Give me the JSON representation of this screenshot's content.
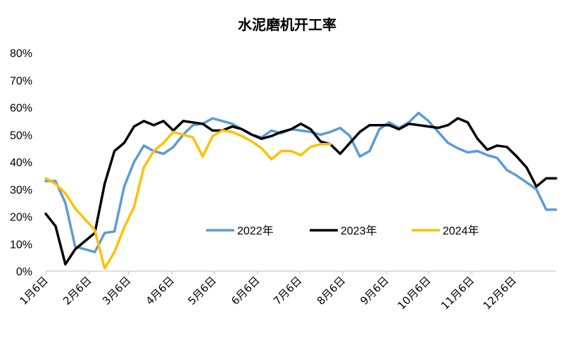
{
  "chart_data": {
    "type": "line",
    "title": "水泥磨机开工率",
    "xlabel": "",
    "ylabel": "",
    "ylim": [
      0,
      80
    ],
    "y_ticks": [
      "0%",
      "10%",
      "20%",
      "30%",
      "40%",
      "50%",
      "60%",
      "70%",
      "80%"
    ],
    "y_tick_values": [
      0,
      10,
      20,
      30,
      40,
      50,
      60,
      70,
      80
    ],
    "x_tick_labels": [
      "1月6日",
      "2月6日",
      "3月6日",
      "4月6日",
      "5月6日",
      "6月6日",
      "7月6日",
      "8月6日",
      "9月6日",
      "10月6日",
      "11月6日",
      "12月6日"
    ],
    "x_tick_weeks": [
      0,
      4.43,
      8.43,
      12.86,
      17.14,
      21.57,
      25.86,
      30.29,
      34.71,
      39,
      43.43,
      47.71
    ],
    "week_range": [
      0,
      52
    ],
    "grid": false,
    "legend_position": "bottom-center",
    "series": [
      {
        "name": "2022年",
        "color": "#5B9BD5",
        "x": [
          0,
          1,
          2,
          3,
          4,
          5,
          6,
          7,
          8,
          9,
          10,
          11,
          12,
          13,
          14,
          15,
          16,
          17,
          18,
          19,
          20,
          21,
          22,
          23,
          24,
          25,
          26,
          27,
          28,
          29,
          30,
          31,
          32,
          33,
          34,
          35,
          36,
          37,
          38,
          39,
          40,
          41,
          42,
          43,
          44,
          45,
          46,
          47,
          48,
          49,
          50,
          51,
          52
        ],
        "values": [
          33,
          33,
          25,
          9,
          8,
          7,
          14,
          14.5,
          31,
          40,
          46,
          44,
          43,
          45.5,
          50,
          53.5,
          54,
          56,
          55,
          54,
          52,
          50,
          49,
          51.5,
          50.5,
          52,
          51.5,
          51,
          50,
          51,
          52.5,
          49.5,
          42,
          44,
          52,
          54.5,
          52.5,
          54.5,
          58,
          55,
          51,
          47,
          45,
          43.5,
          44,
          42.5,
          41.5,
          37,
          35,
          32.5,
          30,
          22.5,
          22.5
        ]
      },
      {
        "name": "2023年",
        "color": "#000000",
        "x": [
          0,
          1,
          2,
          3,
          4,
          5,
          6,
          7,
          8,
          9,
          10,
          11,
          12,
          13,
          14,
          15,
          16,
          17,
          18,
          19,
          20,
          21,
          22,
          23,
          24,
          25,
          26,
          27,
          28,
          29,
          30,
          31,
          32,
          33,
          34,
          35,
          36,
          37,
          38,
          39,
          40,
          41,
          42,
          43,
          44,
          45,
          46,
          47,
          48,
          49,
          50,
          51,
          52
        ],
        "values": [
          21,
          16.5,
          2.5,
          8,
          11,
          14,
          32,
          44,
          47,
          53,
          55,
          53.5,
          55,
          51.5,
          55,
          54.5,
          54,
          51.5,
          51.5,
          53,
          52,
          50,
          48.5,
          49.5,
          51,
          52,
          54,
          52,
          47.5,
          46.5,
          43,
          47,
          51,
          53.5,
          53.5,
          53.5,
          52,
          54,
          53.5,
          53,
          52.5,
          53.5,
          56,
          54.5,
          48.5,
          44.5,
          46,
          45.5,
          42,
          38,
          31,
          34,
          34
        ]
      },
      {
        "name": "2024年",
        "color": "#FFC000",
        "x": [
          0,
          1,
          2,
          3,
          4,
          5,
          6,
          7,
          8,
          9,
          10,
          11,
          12,
          13,
          14,
          15,
          16,
          17,
          18,
          19,
          20,
          21,
          22,
          23,
          24,
          25,
          26,
          27,
          28,
          29
        ],
        "values": [
          34,
          32,
          28.5,
          23,
          19,
          15,
          1,
          7,
          16,
          23.5,
          38,
          44,
          47,
          51,
          50,
          49,
          42,
          49.5,
          51.5,
          51,
          49.5,
          47.5,
          45,
          41,
          44,
          44,
          42.5,
          45.5,
          46.5,
          46.5
        ]
      }
    ]
  }
}
